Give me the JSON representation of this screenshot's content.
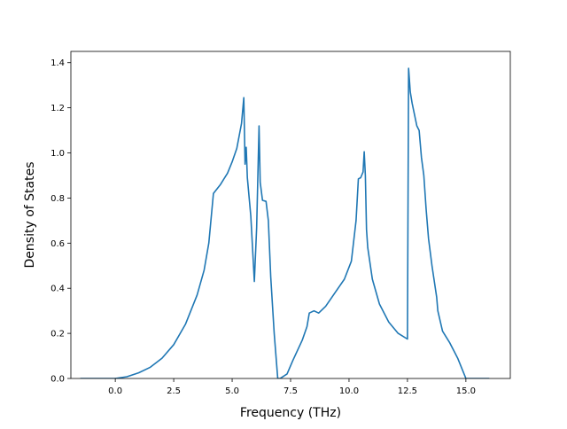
{
  "chart_data": {
    "type": "line",
    "title": "",
    "xlabel": "Frequency (THz)",
    "ylabel": "Density of States",
    "xlim": [
      -1.9,
      16.9
    ],
    "ylim": [
      0,
      1.45
    ],
    "xticks": [
      0.0,
      2.5,
      5.0,
      7.5,
      10.0,
      12.5,
      15.0
    ],
    "xtick_labels": [
      "0.0",
      "2.5",
      "5.0",
      "7.5",
      "10.0",
      "12.5",
      "15.0"
    ],
    "yticks": [
      0.0,
      0.2,
      0.4,
      0.6,
      0.8,
      1.0,
      1.2,
      1.4
    ],
    "ytick_labels": [
      "0.0",
      "0.2",
      "0.4",
      "0.6",
      "0.8",
      "1.0",
      "1.2",
      "1.4"
    ],
    "grid": false,
    "legend": "none",
    "color": "#1f77b4",
    "series": [
      {
        "x": [
          -1.5,
          -1.0,
          -0.5,
          0.0,
          0.5,
          1.0,
          1.5,
          2.0,
          2.5,
          3.0,
          3.5,
          3.8,
          4.0,
          4.2,
          4.5,
          4.8,
          5.0,
          5.2,
          5.4,
          5.5,
          5.55,
          5.6,
          5.65,
          5.8,
          5.95,
          6.05,
          6.15,
          6.2,
          6.3,
          6.45,
          6.55,
          6.65,
          6.8,
          6.95,
          7.05,
          7.35,
          7.6,
          8.0,
          8.2,
          8.3,
          8.5,
          8.7,
          9.0,
          9.4,
          9.8,
          10.1,
          10.3,
          10.4,
          10.5,
          10.6,
          10.65,
          10.7,
          10.75,
          10.8,
          11.0,
          11.3,
          11.7,
          12.1,
          12.5,
          12.55,
          12.62,
          12.7,
          12.9,
          13.0,
          13.1,
          13.2,
          13.3,
          13.4,
          13.55,
          13.75,
          13.8,
          14.0,
          14.3,
          14.5,
          14.65,
          15.0,
          15.5,
          16.0
        ],
        "y": [
          0.0,
          0.0,
          0.0,
          0.0,
          0.008,
          0.025,
          0.05,
          0.09,
          0.15,
          0.24,
          0.37,
          0.48,
          0.6,
          0.82,
          0.86,
          0.91,
          0.96,
          1.02,
          1.13,
          1.245,
          0.95,
          1.025,
          0.89,
          0.72,
          0.43,
          0.67,
          1.12,
          0.87,
          0.79,
          0.785,
          0.7,
          0.45,
          0.2,
          0.0,
          0.0,
          0.02,
          0.08,
          0.17,
          0.23,
          0.29,
          0.3,
          0.29,
          0.32,
          0.38,
          0.44,
          0.52,
          0.7,
          0.885,
          0.89,
          0.915,
          1.005,
          0.9,
          0.66,
          0.58,
          0.44,
          0.33,
          0.25,
          0.2,
          0.175,
          1.375,
          1.27,
          1.22,
          1.12,
          1.1,
          0.98,
          0.9,
          0.75,
          0.62,
          0.5,
          0.36,
          0.3,
          0.21,
          0.16,
          0.12,
          0.09,
          0.0,
          0.0,
          0.0
        ]
      }
    ]
  }
}
